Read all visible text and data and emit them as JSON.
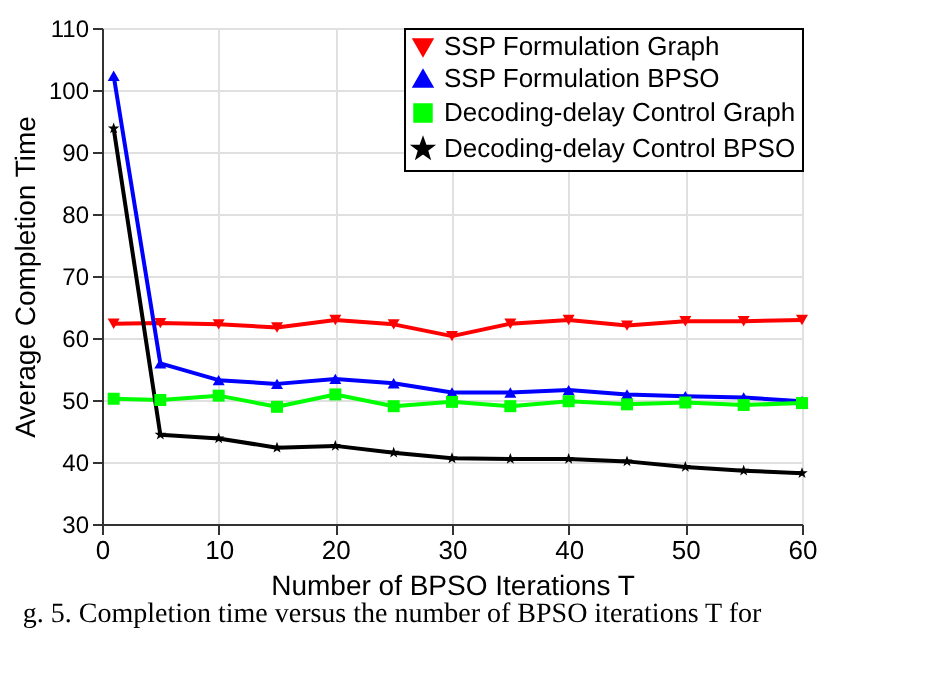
{
  "chart_data": {
    "type": "line",
    "xlabel": "Number of BPSO Iterations T",
    "ylabel": "Average Completion Time",
    "x": [
      1,
      5,
      10,
      15,
      20,
      25,
      30,
      35,
      40,
      45,
      50,
      55,
      60
    ],
    "series": [
      {
        "name": "SSP Formulation Graph",
        "color": "#ff0000",
        "marker": "triangle-down",
        "values": [
          62.3,
          62.4,
          62.2,
          61.7,
          62.9,
          62.2,
          60.3,
          62.3,
          62.9,
          62.0,
          62.7,
          62.7,
          62.9
        ]
      },
      {
        "name": "SSP Formulation BPSO",
        "color": "#0000ff",
        "marker": "triangle",
        "values": [
          102.3,
          55.9,
          53.2,
          52.6,
          53.4,
          52.7,
          51.2,
          51.2,
          51.6,
          50.9,
          50.6,
          50.4,
          49.8
        ]
      },
      {
        "name": "Decoding-delay Control Graph",
        "color": "#00ff00",
        "marker": "square",
        "values": [
          50.2,
          50.0,
          50.7,
          48.9,
          50.9,
          49.0,
          49.7,
          49.0,
          49.8,
          49.3,
          49.6,
          49.2,
          49.5
        ]
      },
      {
        "name": "Decoding-delay Control BPSO",
        "color": "#000000",
        "marker": "star",
        "values": [
          93.8,
          44.4,
          43.8,
          42.3,
          42.6,
          41.5,
          40.6,
          40.5,
          40.5,
          40.1,
          39.2,
          38.6,
          38.2
        ]
      }
    ],
    "xlim": [
      0,
      60
    ],
    "xticks": [
      0,
      10,
      20,
      30,
      40,
      50,
      60
    ],
    "ylim": [
      30,
      110
    ],
    "yticks": [
      30,
      40,
      50,
      60,
      70,
      80,
      90,
      100,
      110
    ],
    "grid": true,
    "legend": "top right",
    "line_style": "solid",
    "annotations": [
      "g. 5.  Completion time versus the number of BPSO iterations T for"
    ]
  }
}
